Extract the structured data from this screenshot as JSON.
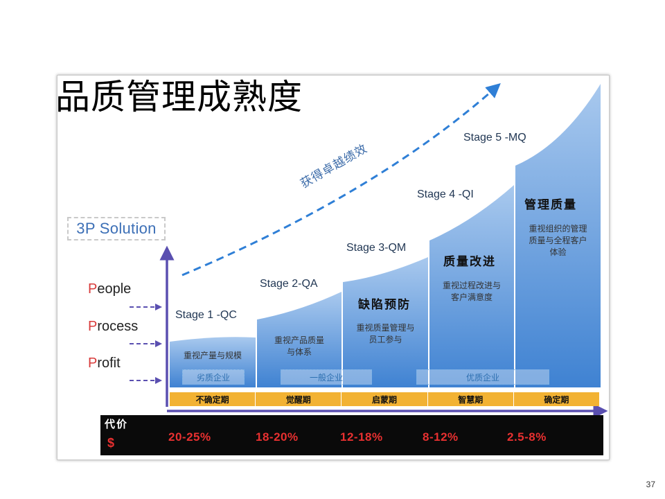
{
  "page": {
    "title": "品质管理成熟度",
    "page_number": "37"
  },
  "diagram": {
    "solution_label": "3P Solution",
    "p_labels": [
      {
        "first": "P",
        "rest": "eople"
      },
      {
        "first": "P",
        "rest": "rocess"
      },
      {
        "first": "P",
        "rest": "rofit"
      }
    ],
    "arrow_text": "获得卓越绩效",
    "stages": [
      {
        "label": "Stage 1 -QC",
        "heading": "",
        "desc": "重视产量与规模"
      },
      {
        "label": "Stage 2-QA",
        "heading": "",
        "desc": "重视产品质量\n与体系"
      },
      {
        "label": "Stage 3-QM",
        "heading": "缺陷预防",
        "desc": "重视质量管理与\n员工参与"
      },
      {
        "label": "Stage 4 -QI",
        "heading": "质量改进",
        "desc": "重视过程改进与\n客户满意度"
      },
      {
        "label": "Stage 5 -MQ",
        "heading": "管理质量",
        "desc": "重视组织的管理\n质量与全程客户\n体验"
      }
    ],
    "bands": [
      "劣质企业",
      "一般企业",
      "优质企业"
    ],
    "phases": [
      "不确定期",
      "觉醒期",
      "启蒙期",
      "智慧期",
      "确定期"
    ],
    "cost": {
      "title": "代价",
      "symbol": "$",
      "values": [
        "20-25%",
        "18-20%",
        "12-18%",
        "8-12%",
        "2.5-8%"
      ]
    },
    "colors": {
      "column_top": "#a9c9ee",
      "column_bottom": "#3f82d2",
      "axis": "#5a4fb0",
      "dashed_arrow": "#2f7fd6",
      "phase_bar": "#f2b233",
      "cost_text": "#e83030"
    }
  }
}
